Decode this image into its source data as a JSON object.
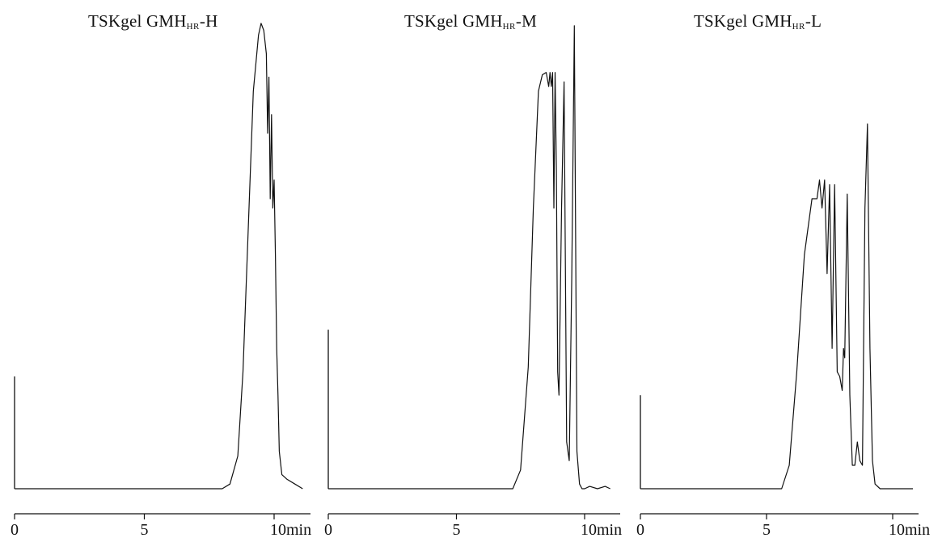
{
  "chart_data": [
    {
      "type": "line",
      "title": {
        "main": "TSKgel GMH",
        "subscript": "HR",
        "suffix": "-H"
      },
      "xlabel": "",
      "ylabel": "",
      "x_unit": "min",
      "xlim": [
        0,
        11.2
      ],
      "ylim": [
        0,
        1
      ],
      "xticks": [
        0,
        5,
        10
      ],
      "xtick_labels": [
        "0",
        "5",
        "10min"
      ],
      "injection_marker": 0.24,
      "grid": false,
      "legend": "none",
      "series": [
        {
          "x": [
            0,
            8.0,
            8.3,
            8.6,
            8.8,
            9.0,
            9.2,
            9.4,
            9.5,
            9.6,
            9.7,
            9.75,
            9.8,
            9.85,
            9.9,
            9.95,
            10.0,
            10.05,
            10.1,
            10.15,
            10.2,
            10.3,
            10.5,
            10.8,
            11.1
          ],
          "y": [
            0,
            0,
            0.01,
            0.07,
            0.25,
            0.55,
            0.85,
            0.97,
            0.995,
            0.98,
            0.93,
            0.76,
            0.88,
            0.62,
            0.8,
            0.6,
            0.66,
            0.5,
            0.3,
            0.2,
            0.08,
            0.03,
            0.02,
            0.01,
            0.0
          ]
        }
      ]
    },
    {
      "type": "line",
      "title": {
        "main": "TSKgel GMH",
        "subscript": "HR",
        "suffix": "-M"
      },
      "xlabel": "",
      "ylabel": "",
      "x_unit": "min",
      "xlim": [
        0,
        11.2
      ],
      "ylim": [
        0,
        1
      ],
      "xticks": [
        0,
        5,
        10
      ],
      "xtick_labels": [
        "0",
        "5",
        "10min"
      ],
      "injection_marker": 0.34,
      "grid": false,
      "legend": "none",
      "series": [
        {
          "x": [
            0,
            7.2,
            7.5,
            7.8,
            8.0,
            8.2,
            8.35,
            8.5,
            8.6,
            8.65,
            8.7,
            8.75,
            8.8,
            8.85,
            8.9,
            8.95,
            9.0,
            9.1,
            9.2,
            9.3,
            9.4,
            9.5,
            9.6,
            9.7,
            9.8,
            9.9,
            10.0,
            10.2,
            10.5,
            10.8,
            11.0
          ],
          "y": [
            0,
            0,
            0.04,
            0.26,
            0.6,
            0.85,
            0.885,
            0.89,
            0.86,
            0.89,
            0.86,
            0.89,
            0.6,
            0.89,
            0.68,
            0.25,
            0.2,
            0.6,
            0.87,
            0.1,
            0.06,
            0.45,
            0.99,
            0.08,
            0.01,
            0.0,
            0.0,
            0.005,
            0.0,
            0.005,
            0.0
          ]
        }
      ]
    },
    {
      "type": "line",
      "title": {
        "main": "TSKgel GMH",
        "subscript": "HR",
        "suffix": "-L"
      },
      "xlabel": "",
      "ylabel": "",
      "x_unit": "min",
      "xlim": [
        0,
        11.2
      ],
      "ylim": [
        0,
        1
      ],
      "xticks": [
        0,
        5,
        10
      ],
      "xtick_labels": [
        "0",
        "5",
        "10min"
      ],
      "injection_marker": 0.2,
      "grid": false,
      "legend": "none",
      "series": [
        {
          "x": [
            0,
            5.6,
            5.9,
            6.2,
            6.5,
            6.8,
            7.0,
            7.1,
            7.2,
            7.3,
            7.4,
            7.5,
            7.6,
            7.7,
            7.8,
            7.9,
            8.0,
            8.05,
            8.1,
            8.2,
            8.3,
            8.4,
            8.5,
            8.6,
            8.7,
            8.8,
            8.9,
            9.0,
            9.1,
            9.2,
            9.3,
            9.5,
            10.0,
            10.5,
            10.8
          ],
          "y": [
            0,
            0,
            0.05,
            0.25,
            0.5,
            0.62,
            0.62,
            0.66,
            0.6,
            0.66,
            0.46,
            0.65,
            0.3,
            0.65,
            0.25,
            0.24,
            0.21,
            0.3,
            0.28,
            0.63,
            0.2,
            0.05,
            0.05,
            0.1,
            0.06,
            0.05,
            0.6,
            0.78,
            0.3,
            0.06,
            0.01,
            0.0,
            0.0,
            0.0,
            0.0
          ]
        }
      ]
    }
  ]
}
